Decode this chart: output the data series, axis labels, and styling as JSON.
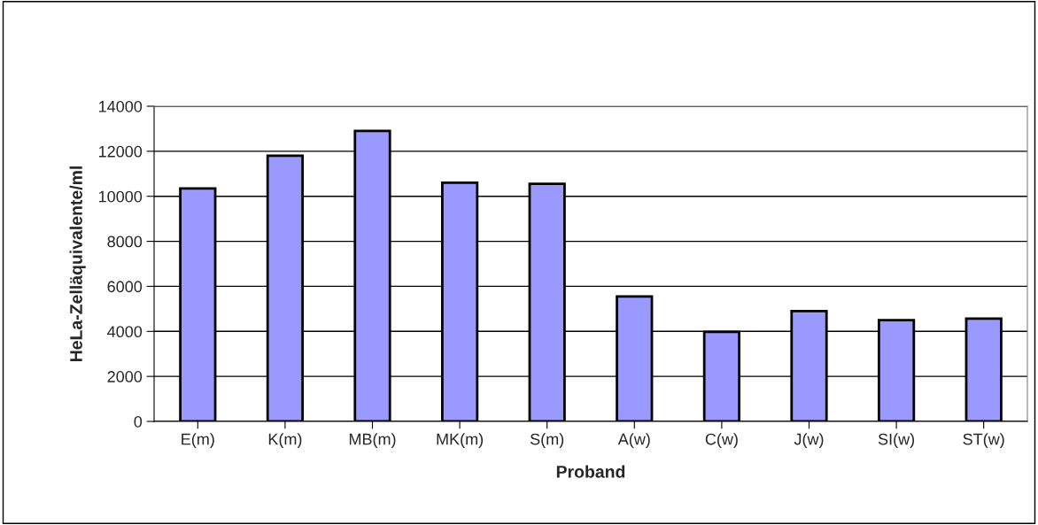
{
  "chart_data": {
    "type": "bar",
    "xlabel": "Proband",
    "ylabel": "HeLa-Zelläquivalente/ml",
    "categories": [
      "E(m)",
      "K(m)",
      "MB(m)",
      "MK(m)",
      "S(m)",
      "A(w)",
      "C(w)",
      "J(w)",
      "SI(w)",
      "ST(w)"
    ],
    "values": [
      10350,
      11800,
      12900,
      10600,
      10550,
      5550,
      3980,
      4900,
      4500,
      4570
    ],
    "color": "#9999ff",
    "ylim": [
      0,
      14000
    ],
    "yticks": [
      0,
      2000,
      4000,
      6000,
      8000,
      10000,
      12000,
      14000
    ],
    "grid": "y",
    "legend": false
  }
}
